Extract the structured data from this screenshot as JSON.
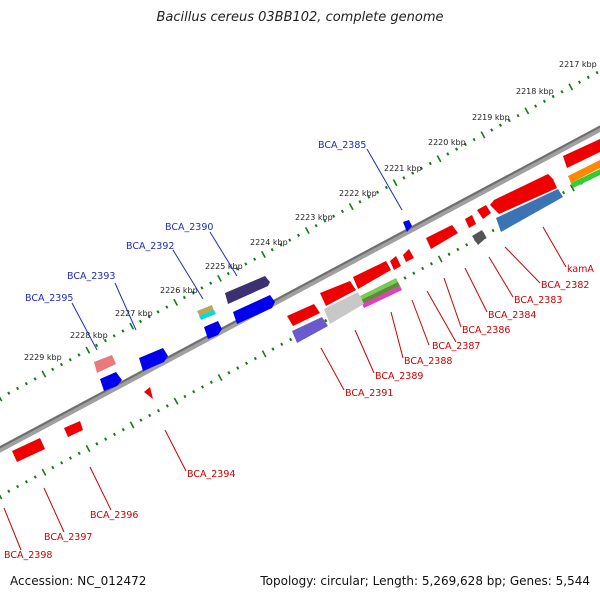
{
  "title": "Bacillus cereus 03BB102, complete genome",
  "footer": {
    "accession": "Accession: NC_012472",
    "summary": "Topology: circular; Length: 5,269,628 bp; Genes: 5,544"
  },
  "colors": {
    "backbone": "#808080",
    "tick": "#1a7a1a",
    "forward_label": "#1e2dbe",
    "reverse_label": "#cc0000"
  },
  "kbp_labels": [
    "2217 kbp",
    "2218 kbp",
    "2219 kbp",
    "2220 kbp",
    "2221 kbp",
    "2222 kbp",
    "2223 kbp",
    "2224 kbp",
    "2225 kbp",
    "2226 kbp",
    "2227 kbp",
    "2228 kbp",
    "2229 kbp"
  ],
  "forward_genes": [
    "BCA_2385",
    "BCA_2390",
    "BCA_2392",
    "BCA_2393",
    "BCA_2395"
  ],
  "reverse_genes": [
    "kamA",
    "BCA_2382",
    "BCA_2383",
    "BCA_2384",
    "BCA_2386",
    "BCA_2387",
    "BCA_2388",
    "BCA_2389",
    "BCA_2391",
    "BCA_2394",
    "BCA_2396",
    "BCA_2397",
    "BCA_2398"
  ]
}
